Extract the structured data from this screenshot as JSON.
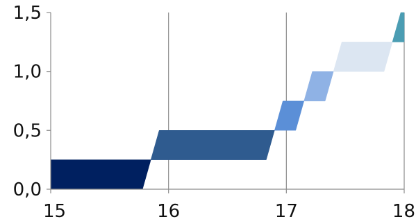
{
  "chart_data": {
    "type": "bar",
    "title": "",
    "xlabel": "",
    "ylabel": "",
    "xlim": [
      15,
      18
    ],
    "ylim": [
      0,
      1.5
    ],
    "x_ticks": [
      15,
      16,
      17,
      18
    ],
    "y_ticks": [
      0.0,
      0.5,
      1.0,
      1.5
    ],
    "x_tick_labels": [
      "15",
      "16",
      "17",
      "18"
    ],
    "y_tick_labels": [
      "0,0",
      "0,5",
      "1,0",
      "1,5"
    ],
    "grid": {
      "vertical": true,
      "horizontal": false
    },
    "legend": "none",
    "series": [
      {
        "x_start": 15.0,
        "x_end": 15.85,
        "y_start": 0.0,
        "y_end": 0.25,
        "color": "#002060"
      },
      {
        "x_start": 15.85,
        "x_end": 16.9,
        "y_start": 0.25,
        "y_end": 0.5,
        "color": "#2F5B8F"
      },
      {
        "x_start": 16.9,
        "x_end": 17.15,
        "y_start": 0.5,
        "y_end": 0.75,
        "color": "#5B8FD7"
      },
      {
        "x_start": 17.15,
        "x_end": 17.4,
        "y_start": 0.75,
        "y_end": 1.0,
        "color": "#8FB2E5"
      },
      {
        "x_start": 17.4,
        "x_end": 17.9,
        "y_start": 1.0,
        "y_end": 1.25,
        "color": "#DCE6F2"
      },
      {
        "x_start": 17.9,
        "x_end": 18.0,
        "y_start": 1.25,
        "y_end": 1.5,
        "color": "#4B9DB3"
      }
    ]
  }
}
